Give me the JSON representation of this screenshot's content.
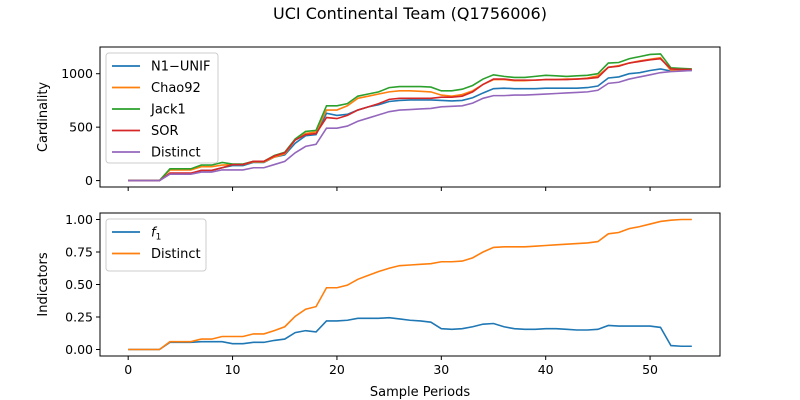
{
  "title": "UCI Continental Team (Q1756006)",
  "colors": {
    "blue": "#1f77b4",
    "orange": "#ff7f0e",
    "green": "#2ca02c",
    "red": "#d62728",
    "purple": "#9467bd"
  },
  "chart_data": [
    {
      "type": "line",
      "ylabel": "Cardinality",
      "xlabel": "",
      "xlim": [
        -2.7,
        56.7
      ],
      "ylim": [
        -60,
        1250
      ],
      "xticks": [
        0,
        10,
        20,
        30,
        40,
        50
      ],
      "yticks": [
        0,
        500,
        1000
      ],
      "x": [
        0,
        1,
        2,
        3,
        4,
        5,
        6,
        7,
        8,
        9,
        10,
        11,
        12,
        13,
        14,
        15,
        16,
        17,
        18,
        19,
        20,
        21,
        22,
        23,
        24,
        25,
        26,
        27,
        28,
        29,
        30,
        31,
        32,
        33,
        34,
        35,
        36,
        37,
        38,
        39,
        40,
        41,
        42,
        43,
        44,
        45,
        46,
        47,
        48,
        49,
        50,
        51,
        52,
        53,
        54
      ],
      "legend_position": "upper-left",
      "series": [
        {
          "name": "N1−UNIF",
          "color": "#1f77b4",
          "values": [
            0,
            0,
            0,
            0,
            65,
            65,
            65,
            95,
            95,
            120,
            140,
            140,
            170,
            170,
            220,
            240,
            350,
            420,
            430,
            630,
            610,
            620,
            660,
            690,
            710,
            740,
            750,
            755,
            755,
            755,
            750,
            745,
            750,
            775,
            820,
            860,
            865,
            860,
            860,
            860,
            865,
            865,
            865,
            865,
            870,
            885,
            960,
            970,
            1000,
            1010,
            1030,
            1045,
            1025,
            1030,
            1030
          ]
        },
        {
          "name": "Chao92",
          "color": "#ff7f0e",
          "values": [
            0,
            0,
            0,
            0,
            100,
            100,
            100,
            130,
            130,
            145,
            150,
            150,
            175,
            175,
            220,
            250,
            380,
            440,
            455,
            660,
            660,
            700,
            770,
            790,
            810,
            830,
            840,
            840,
            835,
            830,
            800,
            790,
            805,
            840,
            900,
            945,
            945,
            935,
            935,
            940,
            945,
            945,
            950,
            950,
            960,
            980,
            1060,
            1075,
            1100,
            1120,
            1135,
            1150,
            1030,
            1035,
            1035
          ]
        },
        {
          "name": "Jack1",
          "color": "#2ca02c",
          "values": [
            0,
            0,
            0,
            0,
            110,
            110,
            110,
            145,
            145,
            170,
            155,
            155,
            180,
            180,
            235,
            265,
            390,
            460,
            470,
            700,
            700,
            720,
            790,
            810,
            830,
            870,
            880,
            880,
            880,
            875,
            840,
            840,
            855,
            890,
            950,
            990,
            975,
            965,
            965,
            975,
            985,
            980,
            975,
            980,
            985,
            1000,
            1100,
            1105,
            1140,
            1160,
            1180,
            1185,
            1055,
            1050,
            1045
          ]
        },
        {
          "name": "SOR",
          "color": "#d62728",
          "values": [
            0,
            0,
            0,
            0,
            70,
            70,
            70,
            95,
            95,
            120,
            150,
            150,
            180,
            180,
            230,
            260,
            380,
            430,
            440,
            590,
            580,
            610,
            660,
            690,
            720,
            760,
            770,
            770,
            770,
            770,
            780,
            780,
            790,
            830,
            900,
            950,
            950,
            940,
            940,
            940,
            945,
            945,
            945,
            950,
            955,
            965,
            1060,
            1070,
            1100,
            1115,
            1130,
            1140,
            1045,
            1040,
            1040
          ]
        },
        {
          "name": "Distinct",
          "color": "#9467bd",
          "values": [
            0,
            0,
            0,
            0,
            60,
            60,
            60,
            80,
            80,
            100,
            100,
            100,
            120,
            120,
            150,
            180,
            260,
            320,
            340,
            490,
            490,
            510,
            555,
            585,
            615,
            645,
            660,
            665,
            670,
            675,
            690,
            695,
            700,
            725,
            770,
            795,
            795,
            800,
            800,
            805,
            810,
            815,
            820,
            825,
            830,
            845,
            910,
            920,
            950,
            970,
            990,
            1010,
            1020,
            1025,
            1030
          ]
        }
      ]
    },
    {
      "type": "line",
      "ylabel": "Indicators",
      "xlabel": "Sample Periods",
      "xlim": [
        -2.7,
        56.7
      ],
      "ylim": [
        -0.05,
        1.05
      ],
      "xticks": [
        0,
        10,
        20,
        30,
        40,
        50
      ],
      "yticks": [
        0.0,
        0.25,
        0.5,
        0.75,
        1.0
      ],
      "ytick_labels": [
        "0.00",
        "0.25",
        "0.50",
        "0.75",
        "1.00"
      ],
      "x": [
        0,
        1,
        2,
        3,
        4,
        5,
        6,
        7,
        8,
        9,
        10,
        11,
        12,
        13,
        14,
        15,
        16,
        17,
        18,
        19,
        20,
        21,
        22,
        23,
        24,
        25,
        26,
        27,
        28,
        29,
        30,
        31,
        32,
        33,
        34,
        35,
        36,
        37,
        38,
        39,
        40,
        41,
        42,
        43,
        44,
        45,
        46,
        47,
        48,
        49,
        50,
        51,
        52,
        53,
        54
      ],
      "legend_position": "upper-left",
      "series": [
        {
          "name": "f1",
          "color": "#1f77b4",
          "values": [
            0,
            0,
            0,
            0,
            0.055,
            0.055,
            0.055,
            0.06,
            0.06,
            0.06,
            0.045,
            0.045,
            0.055,
            0.055,
            0.07,
            0.08,
            0.13,
            0.145,
            0.135,
            0.22,
            0.22,
            0.225,
            0.24,
            0.24,
            0.24,
            0.245,
            0.235,
            0.225,
            0.22,
            0.21,
            0.16,
            0.155,
            0.16,
            0.175,
            0.195,
            0.2,
            0.175,
            0.16,
            0.155,
            0.155,
            0.16,
            0.16,
            0.155,
            0.15,
            0.15,
            0.155,
            0.185,
            0.18,
            0.18,
            0.18,
            0.18,
            0.17,
            0.03,
            0.025,
            0.025
          ]
        },
        {
          "name": "Distinct",
          "color": "#ff7f0e",
          "values": [
            0,
            0,
            0,
            0,
            0.06,
            0.06,
            0.06,
            0.08,
            0.08,
            0.1,
            0.1,
            0.1,
            0.12,
            0.12,
            0.145,
            0.175,
            0.255,
            0.31,
            0.33,
            0.475,
            0.475,
            0.495,
            0.54,
            0.57,
            0.6,
            0.625,
            0.645,
            0.65,
            0.655,
            0.66,
            0.675,
            0.675,
            0.68,
            0.705,
            0.75,
            0.785,
            0.79,
            0.79,
            0.79,
            0.795,
            0.8,
            0.805,
            0.81,
            0.815,
            0.82,
            0.83,
            0.89,
            0.9,
            0.93,
            0.945,
            0.965,
            0.985,
            0.995,
            1.0,
            1.0
          ]
        }
      ]
    }
  ]
}
